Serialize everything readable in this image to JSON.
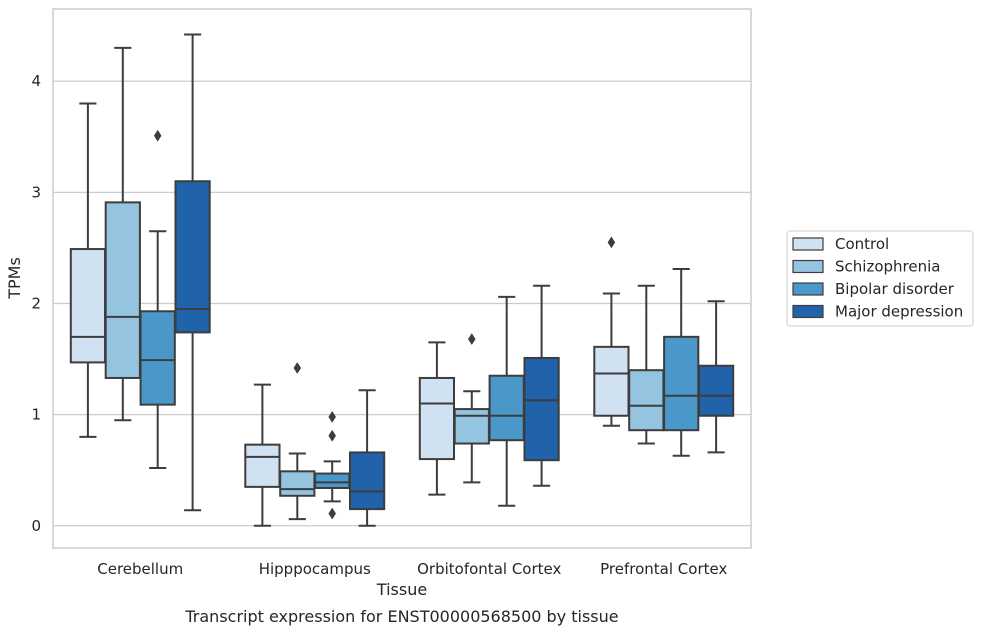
{
  "caption": "Transcript expression for ENST00000568500 by tissue",
  "chart_data": {
    "type": "box",
    "xlabel": "Tissue",
    "ylabel": "TPMs",
    "ylim": [
      -0.2,
      4.65
    ],
    "yticks": [
      0,
      1,
      2,
      3,
      4
    ],
    "grid": "horizontal",
    "legend_position": "right",
    "categories": [
      "Cerebellum",
      "Hipppocampus",
      "Orbitofontal Cortex",
      "Prefrontal Cortex"
    ],
    "series": [
      {
        "name": "Control",
        "color": "#d0e1f2",
        "boxes": [
          {
            "whisker_low": 0.8,
            "q1": 1.47,
            "median": 1.7,
            "q3": 2.49,
            "whisker_high": 3.8,
            "outliers": []
          },
          {
            "whisker_low": 0.0,
            "q1": 0.35,
            "median": 0.62,
            "q3": 0.73,
            "whisker_high": 1.27,
            "outliers": []
          },
          {
            "whisker_low": 0.28,
            "q1": 0.6,
            "median": 1.1,
            "q3": 1.33,
            "whisker_high": 1.65,
            "outliers": []
          },
          {
            "whisker_low": 0.9,
            "q1": 0.99,
            "median": 1.37,
            "q3": 1.61,
            "whisker_high": 2.09,
            "outliers": [
              2.55
            ]
          }
        ]
      },
      {
        "name": "Schizophrenia",
        "color": "#94c4df",
        "boxes": [
          {
            "whisker_low": 0.95,
            "q1": 1.33,
            "median": 1.88,
            "q3": 2.91,
            "whisker_high": 4.3,
            "outliers": []
          },
          {
            "whisker_low": 0.06,
            "q1": 0.27,
            "median": 0.33,
            "q3": 0.49,
            "whisker_high": 0.65,
            "outliers": [
              1.42
            ]
          },
          {
            "whisker_low": 0.39,
            "q1": 0.74,
            "median": 0.99,
            "q3": 1.05,
            "whisker_high": 1.21,
            "outliers": [
              1.68
            ]
          },
          {
            "whisker_low": 0.74,
            "q1": 0.86,
            "median": 1.08,
            "q3": 1.4,
            "whisker_high": 2.16,
            "outliers": []
          }
        ]
      },
      {
        "name": "Bipolar disorder",
        "color": "#4a98c9",
        "boxes": [
          {
            "whisker_low": 0.52,
            "q1": 1.09,
            "median": 1.49,
            "q3": 1.93,
            "whisker_high": 2.65,
            "outliers": [
              3.51
            ]
          },
          {
            "whisker_low": 0.22,
            "q1": 0.34,
            "median": 0.39,
            "q3": 0.47,
            "whisker_high": 0.58,
            "outliers": [
              0.98,
              0.81,
              0.11
            ]
          },
          {
            "whisker_low": 0.18,
            "q1": 0.77,
            "median": 0.99,
            "q3": 1.35,
            "whisker_high": 2.06,
            "outliers": []
          },
          {
            "whisker_low": 0.63,
            "q1": 0.86,
            "median": 1.17,
            "q3": 1.7,
            "whisker_high": 2.31,
            "outliers": []
          }
        ]
      },
      {
        "name": "Major depression",
        "color": "#2163aa",
        "boxes": [
          {
            "whisker_low": 0.14,
            "q1": 1.74,
            "median": 1.95,
            "q3": 3.1,
            "whisker_high": 4.42,
            "outliers": []
          },
          {
            "whisker_low": 0.0,
            "q1": 0.15,
            "median": 0.31,
            "q3": 0.66,
            "whisker_high": 1.22,
            "outliers": []
          },
          {
            "whisker_low": 0.36,
            "q1": 0.59,
            "median": 1.13,
            "q3": 1.51,
            "whisker_high": 2.16,
            "outliers": []
          },
          {
            "whisker_low": 0.66,
            "q1": 0.99,
            "median": 1.17,
            "q3": 1.44,
            "whisker_high": 2.02,
            "outliers": []
          }
        ]
      }
    ]
  }
}
